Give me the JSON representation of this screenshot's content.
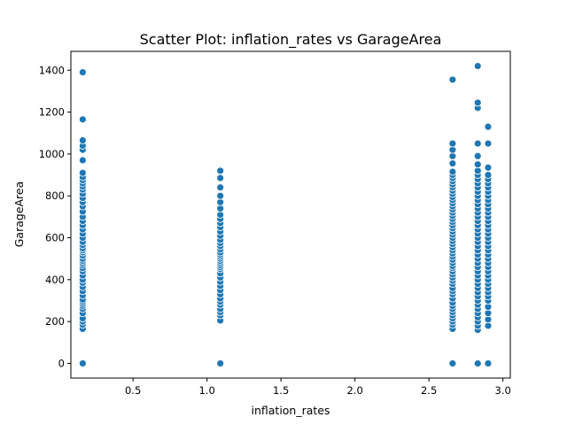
{
  "chart_data": {
    "type": "scatter",
    "title": "Scatter Plot: inflation_rates vs GarageArea",
    "xlabel": "inflation_rates",
    "ylabel": "GarageArea",
    "xlim": [
      0.08,
      3.05
    ],
    "ylim": [
      -70,
      1490
    ],
    "x_ticks": [
      "0.5",
      "1.0",
      "1.5",
      "2.0",
      "2.5",
      "3.0"
    ],
    "y_ticks": [
      "0",
      "200",
      "400",
      "600",
      "800",
      "1000",
      "1200",
      "1400"
    ],
    "grid": false,
    "marker_color": "#1f77b4",
    "series": [
      {
        "points": [
          {
            "x": 0.16,
            "values": [
              0,
              165,
              185,
              200,
              215,
              240,
              260,
              275,
              285,
              295,
              305,
              325,
              345,
              365,
              385,
              400,
              420,
              440,
              455,
              470,
              480,
              490,
              500,
              515,
              530,
              540,
              550,
              565,
              580,
              600,
              620,
              640,
              660,
              680,
              700,
              725,
              750,
              770,
              790,
              810,
              830,
              845,
              860,
              875,
              890,
              910,
              970,
              1020,
              1040,
              1065,
              1165,
              1390
            ]
          },
          {
            "x": 1.09,
            "values": [
              0,
              205,
              230,
              245,
              260,
              280,
              295,
              310,
              330,
              350,
              370,
              390,
              410,
              430,
              450,
              460,
              470,
              480,
              490,
              500,
              510,
              520,
              530,
              545,
              560,
              575,
              590,
              610,
              630,
              650,
              670,
              690,
              710,
              740,
              770,
              800,
              840,
              885,
              920
            ]
          },
          {
            "x": 2.66,
            "values": [
              0,
              165,
              185,
              200,
              215,
              230,
              245,
              260,
              275,
              290,
              310,
              330,
              345,
              360,
              380,
              395,
              410,
              425,
              440,
              455,
              465,
              480,
              495,
              510,
              525,
              540,
              555,
              570,
              585,
              600,
              615,
              630,
              645,
              660,
              675,
              690,
              705,
              720,
              735,
              750,
              765,
              780,
              795,
              810,
              825,
              840,
              855,
              870,
              885,
              900,
              915,
              955,
              990,
              1020,
              1050,
              1355
            ]
          },
          {
            "x": 2.83,
            "values": [
              0,
              160,
              180,
              200,
              220,
              240,
              260,
              280,
              300,
              320,
              340,
              360,
              380,
              400,
              420,
              440,
              460,
              480,
              500,
              520,
              540,
              560,
              580,
              600,
              620,
              640,
              660,
              680,
              700,
              720,
              740,
              760,
              780,
              800,
              820,
              840,
              860,
              880,
              900,
              920,
              950,
              990,
              1050,
              1220,
              1245,
              1420
            ]
          },
          {
            "x": 2.9,
            "values": [
              0,
              180,
              210,
              240,
              270,
              300,
              320,
              340,
              360,
              380,
              400,
              420,
              440,
              460,
              480,
              500,
              520,
              540,
              560,
              580,
              600,
              620,
              640,
              660,
              680,
              700,
              720,
              740,
              760,
              780,
              800,
              820,
              840,
              860,
              880,
              900,
              935,
              1050,
              1130
            ]
          }
        ]
      }
    ]
  }
}
